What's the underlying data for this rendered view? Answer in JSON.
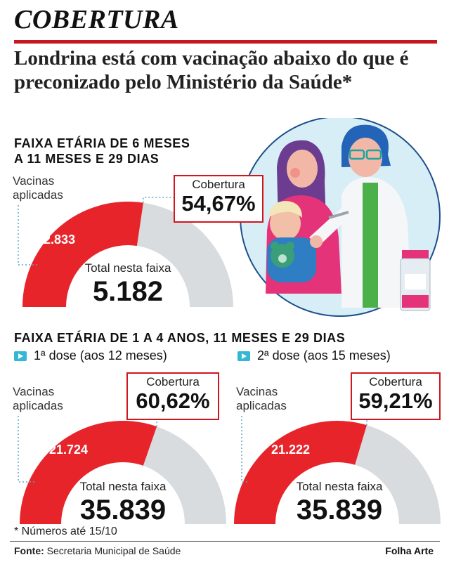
{
  "section_title": "COBERTURA",
  "headline": "Londrina está com vacinação abaixo do que é preconizado pelo Ministério da Saúde*",
  "colors": {
    "accent_red": "#e8242b",
    "gauge_grey": "#d9dcdf",
    "rule_red": "#c8171e",
    "icon_cyan": "#33b7d6"
  },
  "groups": [
    {
      "heading_lines": [
        "FAIXA ETÁRIA DE 6 MESES",
        "A 11 MESES E 29 DIAS"
      ],
      "applied_label_lines": [
        "Vacinas",
        "aplicadas"
      ],
      "coverage_label": "Cobertura",
      "coverage_value": "54,67%",
      "applied_value": "2.833",
      "total_label": "Total nesta faixa",
      "total_value": "5.182"
    },
    {
      "heading": "FAIXA ETÁRIA DE 1 A 4 ANOS, 11 MESES E 29 DIAS",
      "doses": [
        {
          "dose_label": "1ª dose (aos 12 meses)",
          "applied_label_lines": [
            "Vacinas",
            "aplicadas"
          ],
          "coverage_label": "Cobertura",
          "coverage_value": "60,62%",
          "applied_value": "21.724",
          "total_label": "Total nesta faixa",
          "total_value": "35.839"
        },
        {
          "dose_label": "2ª dose (aos 15 meses)",
          "applied_label_lines": [
            "Vacinas",
            "aplicadas"
          ],
          "coverage_label": "Cobertura",
          "coverage_value": "59,21%",
          "applied_value": "21.222",
          "total_label": "Total nesta faixa",
          "total_value": "35.839"
        }
      ]
    }
  ],
  "chart_data": [
    {
      "type": "gauge",
      "group": "6 meses a 11 meses e 29 dias",
      "applied": 2833,
      "total": 5182,
      "coverage_pct": 54.67
    },
    {
      "type": "gauge",
      "group": "1 a 4 anos - 1ª dose",
      "applied": 21724,
      "total": 35839,
      "coverage_pct": 60.62
    },
    {
      "type": "gauge",
      "group": "1 a 4 anos - 2ª dose",
      "applied": 21222,
      "total": 35839,
      "coverage_pct": 59.21
    }
  ],
  "footnote": "* Números até 15/10",
  "source_label": "Fonte:",
  "source_text": " Secretaria Municipal de Saúde",
  "credit": "Folha Arte",
  "illustration": {
    "subject": "vaccination-illustration",
    "icons": [
      "nurse-icon",
      "mother-icon",
      "child-icon",
      "teddy-bear-icon",
      "vaccine-vial-icon"
    ]
  }
}
